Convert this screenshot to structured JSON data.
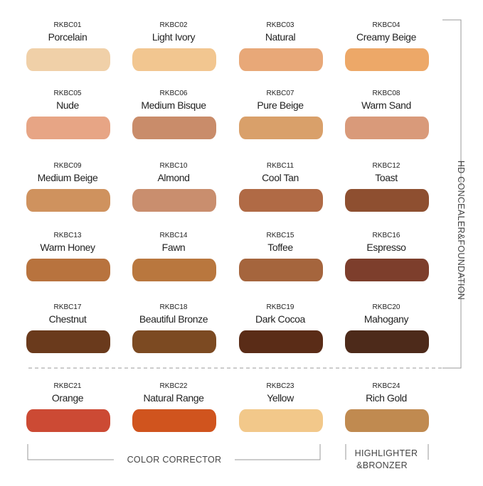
{
  "swatches": [
    {
      "code": "RKBC01",
      "name": "Porcelain",
      "color": "#f0d0a8"
    },
    {
      "code": "RKBC02",
      "name": "Light Ivory",
      "color": "#f2c690"
    },
    {
      "code": "RKBC03",
      "name": "Natural",
      "color": "#e8a878"
    },
    {
      "code": "RKBC04",
      "name": "Creamy Beige",
      "color": "#eda868"
    },
    {
      "code": "RKBC05",
      "name": "Nude",
      "color": "#e7a585"
    },
    {
      "code": "RKBC06",
      "name": "Medium Bisque",
      "color": "#c98c6a"
    },
    {
      "code": "RKBC07",
      "name": "Pure Beige",
      "color": "#d9a06a"
    },
    {
      "code": "RKBC08",
      "name": "Warm Sand",
      "color": "#d99a7a"
    },
    {
      "code": "RKBC09",
      "name": "Medium Beige",
      "color": "#cf925e"
    },
    {
      "code": "RKBC10",
      "name": "Almond",
      "color": "#c98e6e"
    },
    {
      "code": "RKBC11",
      "name": "Cool Tan",
      "color": "#b06a45"
    },
    {
      "code": "RKBC12",
      "name": "Toast",
      "color": "#8e4f30"
    },
    {
      "code": "RKBC13",
      "name": "Warm Honey",
      "color": "#b8733e"
    },
    {
      "code": "RKBC14",
      "name": "Fawn",
      "color": "#b9773e"
    },
    {
      "code": "RKBC15",
      "name": "Toffee",
      "color": "#a5653d"
    },
    {
      "code": "RKBC16",
      "name": "Espresso",
      "color": "#7d3e2c"
    },
    {
      "code": "RKBC17",
      "name": "Chestnut",
      "color": "#6a3a1c"
    },
    {
      "code": "RKBC18",
      "name": "Beautiful Bronze",
      "color": "#7c4a22"
    },
    {
      "code": "RKBC19",
      "name": "Dark Cocoa",
      "color": "#5a2c17"
    },
    {
      "code": "RKBC20",
      "name": "Mahogany",
      "color": "#4d2a1a"
    },
    {
      "code": "RKBC21",
      "name": "Orange",
      "color": "#cc4a34"
    },
    {
      "code": "RKBC22",
      "name": "Natural Range",
      "color": "#d0541e"
    },
    {
      "code": "RKBC23",
      "name": "Yellow",
      "color": "#f2c88a"
    },
    {
      "code": "RKBC24",
      "name": "Rich Gold",
      "color": "#c08a50"
    }
  ],
  "groups": {
    "foundation": "HD CONCEALER&FOUNDATION",
    "corrector": "COLOR CORRECTOR",
    "highlighter": [
      "HIGHLIGHTER",
      "&BRONZER"
    ]
  }
}
